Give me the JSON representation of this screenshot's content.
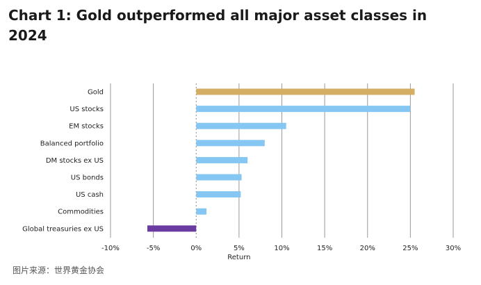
{
  "header": {
    "title": "Chart 1: Gold outperformed all major asset classes in 2024"
  },
  "footer": {
    "source": "图片来源：世界黄金协会"
  },
  "colors": {
    "gold": "#D4AF63",
    "default": "#85C6F2",
    "negative": "#6A3BA0",
    "grid": "#999999",
    "zero_axis": "#888888"
  },
  "chart_data": {
    "type": "bar",
    "orientation": "horizontal",
    "title": "Chart 1: Gold outperformed all major asset classes in 2024",
    "xlabel": "Return",
    "ylabel": "",
    "xlim": [
      -10,
      30
    ],
    "x_ticks": [
      -10,
      -5,
      0,
      5,
      10,
      15,
      20,
      25,
      30
    ],
    "x_tick_labels": [
      "-10%",
      "-5%",
      "0%",
      "5%",
      "10%",
      "15%",
      "20%",
      "25%",
      "30%"
    ],
    "grid": "vertical",
    "legend": "none",
    "categories": [
      "Gold",
      "US stocks",
      "EM stocks",
      "Balanced portfolio",
      "DM stocks ex US",
      "US bonds",
      "US cash",
      "Commodities",
      "Global treasuries ex US"
    ],
    "values": [
      25.5,
      25.0,
      10.5,
      8.0,
      6.0,
      5.3,
      5.2,
      1.2,
      -5.7
    ],
    "bar_color_keys": [
      "gold",
      "default",
      "default",
      "default",
      "default",
      "default",
      "default",
      "default",
      "negative"
    ]
  }
}
